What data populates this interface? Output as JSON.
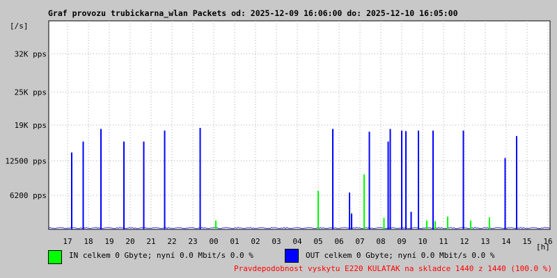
{
  "title": "Graf provozu trubickarna_wlan Packets od: 2025-12-09 16:06:00 do: 2025-12-10 16:05:00",
  "legend": {
    "in": {
      "text": "IN celkem 0 Gbyte; nyní   0.0 Mbit/s 0.0 %",
      "color": "#00ff00"
    },
    "out": {
      "text": "OUT celkem 0 Gbyte; nyní   0.0 Mbit/s 0.0 %",
      "color": "#0000ff"
    }
  },
  "note": "Pravdepodobnost vyskytu E220 KULATAK na skladce 1440 z 1440 (100.0 %)",
  "chart_data": {
    "type": "line",
    "ylabel": "[/s]",
    "xlabel": "[h]",
    "x_ticks": [
      "17",
      "18",
      "19",
      "20",
      "21",
      "22",
      "23",
      "00",
      "01",
      "02",
      "03",
      "04",
      "05",
      "06",
      "07",
      "08",
      "09",
      "10",
      "11",
      "12",
      "13",
      "14",
      "15",
      "16"
    ],
    "y_ticks": [
      {
        "value": 6200,
        "label": "6200 pps"
      },
      {
        "value": 12500,
        "label": "12500 pps"
      },
      {
        "value": 19000,
        "label": "19K pps"
      },
      {
        "value": 25000,
        "label": "25K pps"
      },
      {
        "value": 32000,
        "label": "32K pps"
      }
    ],
    "ylim": [
      0,
      38000
    ],
    "xlim": [
      16.1,
      40.1
    ],
    "grid": true,
    "series": [
      {
        "name": "OUT",
        "color": "#0000ff",
        "points": [
          [
            17.2,
            14000
          ],
          [
            17.75,
            16000
          ],
          [
            18.6,
            18300
          ],
          [
            19.7,
            16000
          ],
          [
            20.65,
            16000
          ],
          [
            21.65,
            18000
          ],
          [
            23.35,
            18500
          ],
          [
            29.7,
            18300
          ],
          [
            30.5,
            6700
          ],
          [
            30.6,
            2800
          ],
          [
            31.45,
            17800
          ],
          [
            32.35,
            16000
          ],
          [
            32.45,
            18300
          ],
          [
            33.0,
            18000
          ],
          [
            33.2,
            17900
          ],
          [
            33.45,
            3200
          ],
          [
            33.8,
            18000
          ],
          [
            34.5,
            18000
          ],
          [
            35.95,
            18000
          ],
          [
            37.95,
            13000
          ],
          [
            38.5,
            17000
          ]
        ]
      },
      {
        "name": "IN",
        "color": "#00ff00",
        "points": [
          [
            24.1,
            1600
          ],
          [
            29.0,
            7000
          ],
          [
            30.6,
            3000
          ],
          [
            31.2,
            10000
          ],
          [
            32.15,
            2100
          ],
          [
            33.0,
            1800
          ],
          [
            34.2,
            1600
          ],
          [
            34.6,
            1500
          ],
          [
            35.2,
            2300
          ],
          [
            36.3,
            1600
          ],
          [
            37.2,
            2200
          ]
        ]
      }
    ]
  }
}
